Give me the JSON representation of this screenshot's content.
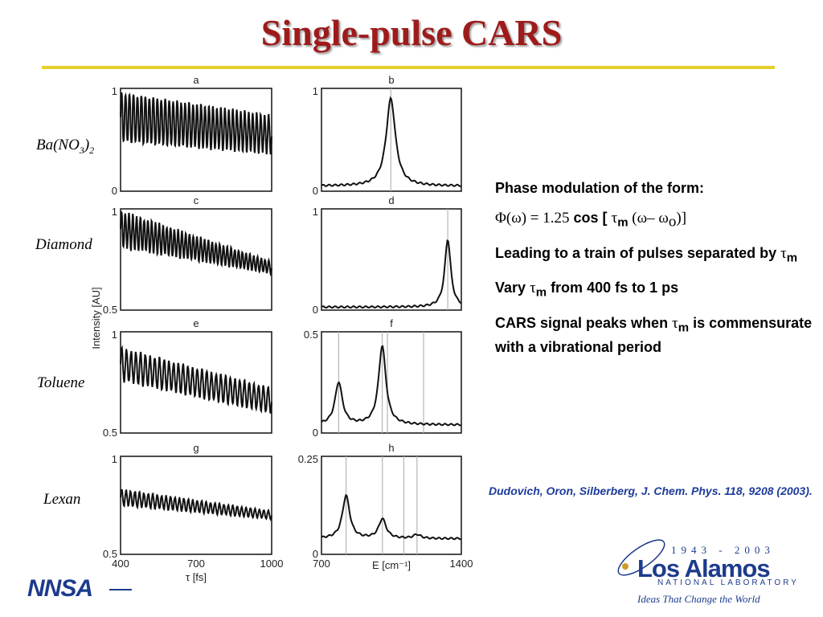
{
  "title": "Single-pulse CARS",
  "samples": [
    "Ba(NO",
    "3",
    ")",
    "2",
    "Diamond",
    "Toluene",
    "Lexan"
  ],
  "notes": {
    "line1": "Phase modulation of the form:",
    "formula_lhs": "Φ(ω) = 1.25",
    "formula_cos": "cos [",
    "formula_tau": "τ",
    "formula_m": "m",
    "formula_rest": " (ω– ω",
    "formula_o": "o",
    "formula_close": ")]",
    "line3a": "Leading to a train of pulses separated by",
    "vary_a": "Vary",
    "vary_b": "from 400 fs to 1 ps",
    "peaks_a": "CARS signal peaks when",
    "peaks_b": "is commensurate with a vibrational period"
  },
  "reference": "Dudovich, Oron, Silberberg,  J. Chem.  Phys. 118, 9208 (2003).",
  "logos": {
    "nnsa": "NNSA",
    "lanl_years": "1943 - 2003",
    "lanl_name": "Los Alamos",
    "lanl_sub": "NATIONAL LABORATORY",
    "lanl_tag": "Ideas That Change the World"
  },
  "colors": {
    "title": "#9e1b1b",
    "rule": "#e5cf2a",
    "reference": "#1d3b9a",
    "logo": "#1d3b8c"
  },
  "chart_data": [
    {
      "panel": "a",
      "type": "line",
      "ylim": [
        0,
        1
      ],
      "yticks": [
        "1",
        "0"
      ],
      "xlim": [
        400,
        1000
      ],
      "description_values": {
        "oscillation_center_start": 0.72,
        "oscillation_center_end": 0.55,
        "amplitude_start": 0.25,
        "amplitude_end": 0.18,
        "cycles": 38
      }
    },
    {
      "panel": "b",
      "type": "line",
      "ylim": [
        0,
        1
      ],
      "yticks": [
        "1",
        "0"
      ],
      "xlim": [
        700,
        1400
      ],
      "vlines": [
        1047
      ],
      "peak": {
        "x": 1047,
        "y": 0.9,
        "width": 28
      },
      "baseline": 0.05
    },
    {
      "panel": "c",
      "type": "line",
      "ylim": [
        0.5,
        1
      ],
      "yticks": [
        "1",
        "0.5"
      ],
      "xlim": [
        400,
        1000
      ],
      "description_values": {
        "oscillation_center_start": 0.9,
        "oscillation_center_end": 0.71,
        "amplitude_start": 0.09,
        "amplitude_end": 0.03,
        "cycles": 40
      }
    },
    {
      "panel": "d",
      "type": "line",
      "ylim": [
        0,
        1
      ],
      "yticks": [
        "1",
        "0"
      ],
      "xlim": [
        700,
        1400
      ],
      "vlines": [
        1332
      ],
      "peak": {
        "x": 1332,
        "y": 0.7,
        "width": 18
      },
      "baseline": 0.03
    },
    {
      "panel": "e",
      "type": "line",
      "ylim": [
        0.5,
        1
      ],
      "yticks": [
        "1",
        "0.5"
      ],
      "xlim": [
        400,
        1000
      ],
      "description_values": {
        "oscillation_center_start": 0.84,
        "oscillation_center_end": 0.66,
        "amplitude_start": 0.08,
        "amplitude_end": 0.06,
        "cycles": 32
      }
    },
    {
      "panel": "f",
      "type": "line",
      "ylim": [
        0,
        0.5
      ],
      "yticks": [
        "0.5",
        "0"
      ],
      "xlim": [
        700,
        1400
      ],
      "vlines": [
        786,
        1004,
        1030,
        1211
      ],
      "peaks": [
        {
          "x": 786,
          "y": 0.25
        },
        {
          "x": 1004,
          "y": 0.43
        }
      ],
      "baseline": 0.04
    },
    {
      "panel": "g",
      "type": "line",
      "ylim": [
        0.5,
        1
      ],
      "yticks": [
        "1",
        "0.5"
      ],
      "xlim": [
        400,
        1000
      ],
      "description_values": {
        "oscillation_center_start": 0.79,
        "oscillation_center_end": 0.7,
        "amplitude_start": 0.04,
        "amplitude_end": 0.02,
        "cycles": 34
      }
    },
    {
      "panel": "h",
      "type": "line",
      "ylim": [
        0,
        0.25
      ],
      "yticks": [
        "0.25",
        "0"
      ],
      "xlim": [
        700,
        1400
      ],
      "vlines": [
        823,
        1005,
        1112,
        1178
      ],
      "peaks": [
        {
          "x": 823,
          "y": 0.15
        },
        {
          "x": 1005,
          "y": 0.09
        },
        {
          "x": 1178,
          "y": 0.05
        }
      ],
      "baseline": 0.04
    }
  ],
  "axes": {
    "left_xticks": [
      "400",
      "700",
      "1000"
    ],
    "right_xticks": [
      "700",
      "1400"
    ],
    "left_xlabel": "τ [fs]",
    "right_xlabel": "E [cm⁻¹]",
    "ylabel": "Intensity [AU]"
  }
}
